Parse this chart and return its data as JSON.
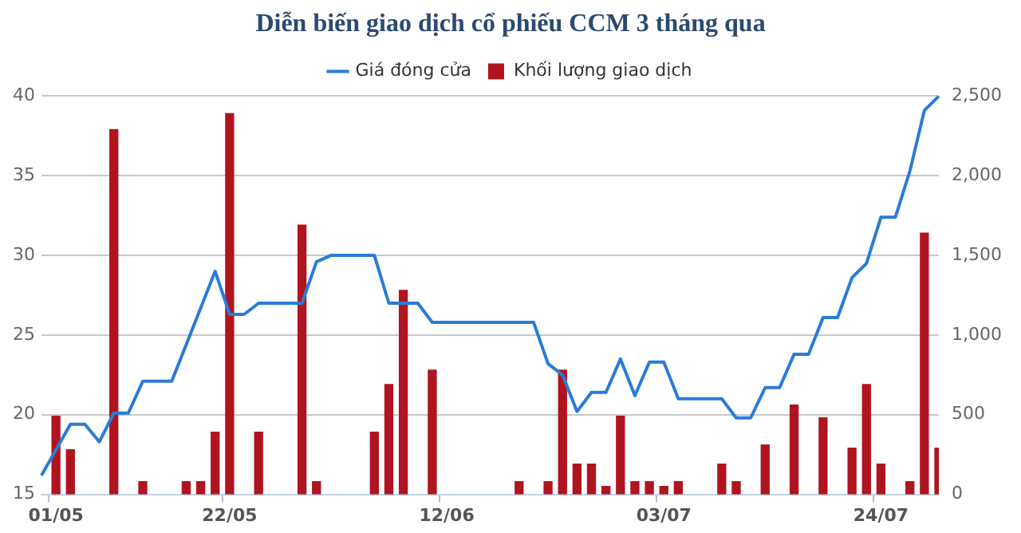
{
  "chart_data": {
    "type": "bar",
    "title": "Diễn biến giao dịch cổ phiếu CCM 3 tháng qua",
    "categories": [
      null,
      "01/05",
      null,
      null,
      null,
      null,
      null,
      null,
      null,
      null,
      null,
      null,
      null,
      "22/05",
      null,
      null,
      null,
      null,
      null,
      null,
      null,
      null,
      null,
      null,
      null,
      null,
      null,
      null,
      "12/06",
      null,
      null,
      null,
      null,
      null,
      null,
      null,
      null,
      null,
      null,
      null,
      null,
      null,
      null,
      "03/07",
      null,
      null,
      null,
      null,
      null,
      null,
      null,
      null,
      null,
      null,
      null,
      null,
      null,
      null,
      "24/07",
      null,
      null,
      null,
      null
    ],
    "series": [
      {
        "name": "Giá đóng cửa",
        "type": "line",
        "color": "#2a7bd8",
        "values": [
          16.2,
          17.8,
          19.4,
          19.4,
          18.3,
          20.1,
          20.1,
          22.1,
          22.1,
          22.1,
          24.4,
          26.7,
          29.0,
          26.3,
          26.3,
          27.0,
          27.0,
          27.0,
          27.0,
          29.6,
          30.0,
          30.0,
          30.0,
          30.0,
          27.0,
          27.0,
          27.0,
          25.8,
          25.8,
          25.8,
          25.8,
          25.8,
          25.8,
          25.8,
          25.8,
          23.2,
          22.5,
          20.2,
          21.4,
          21.4,
          23.5,
          21.2,
          23.3,
          23.3,
          21.0,
          21.0,
          21.0,
          21.0,
          19.8,
          19.8,
          21.7,
          21.7,
          23.8,
          23.8,
          26.1,
          26.1,
          28.6,
          29.5,
          32.4,
          32.4,
          35.3,
          39.1,
          40.0
        ]
      },
      {
        "name": "Khối lượng giao dịch",
        "type": "bar",
        "axis": "y2",
        "color": "#b0141e",
        "values": [
          null,
          490,
          280,
          null,
          null,
          2290,
          null,
          80,
          null,
          null,
          80,
          80,
          390,
          2390,
          null,
          390,
          null,
          null,
          1690,
          80,
          null,
          null,
          null,
          390,
          690,
          1280,
          null,
          780,
          null,
          null,
          null,
          null,
          null,
          80,
          null,
          80,
          780,
          190,
          190,
          50,
          490,
          80,
          80,
          50,
          80,
          null,
          null,
          190,
          80,
          null,
          310,
          null,
          560,
          null,
          480,
          null,
          290,
          690,
          190,
          null,
          80,
          1640,
          290
        ]
      }
    ],
    "ylim": [
      15,
      40
    ],
    "yticks": [
      15,
      20,
      25,
      30,
      35,
      40
    ],
    "y2lim": [
      0,
      2500
    ],
    "y2ticks": [
      {
        "value": 0,
        "label": "0"
      },
      {
        "value": 500,
        "label": "500"
      },
      {
        "value": 1000,
        "label": "1,000"
      },
      {
        "value": 1500,
        "label": "1,500"
      },
      {
        "value": 2000,
        "label": "2,000"
      },
      {
        "value": 2500,
        "label": "2,500"
      }
    ],
    "grid": "y",
    "legend": "top"
  }
}
